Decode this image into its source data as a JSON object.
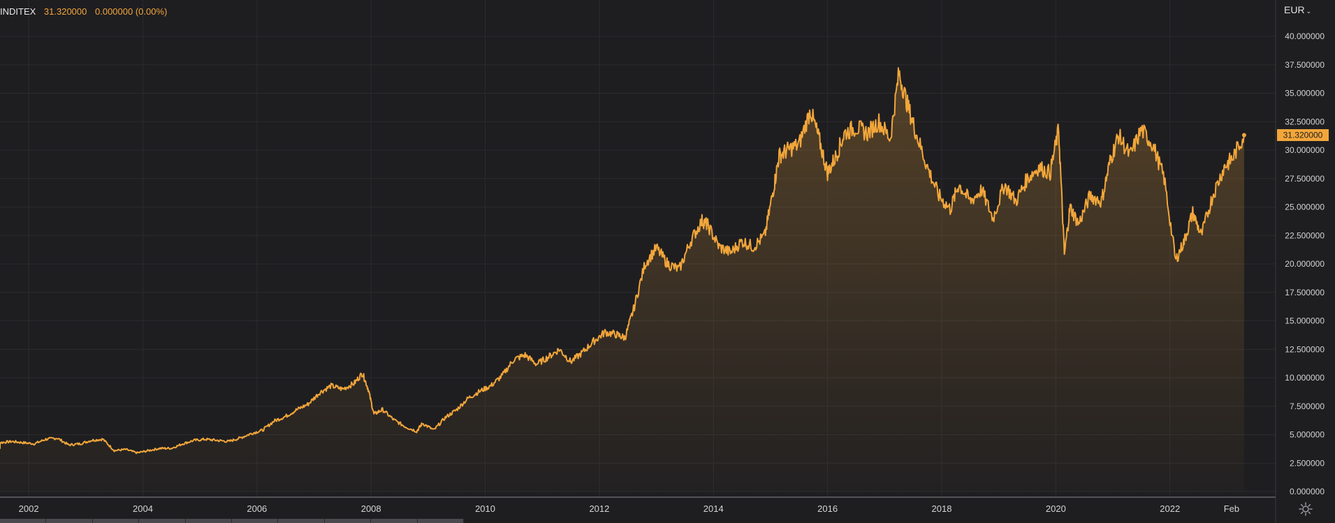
{
  "header": {
    "symbol": "INDITEX",
    "last_price": "31.320000",
    "change": "0.000000 (0.00%)"
  },
  "currency": {
    "label": "EUR",
    "caret": "⌄"
  },
  "colors": {
    "background": "#1e1e21",
    "line": "#f2a63a",
    "grid": "#2b2b2f",
    "axis_text": "#d4d4d4"
  },
  "chart_data": {
    "type": "area",
    "title": "",
    "xlabel": "",
    "ylabel": "",
    "ylim": [
      0,
      40
    ],
    "xlim": [
      2001.3,
      2024.0
    ],
    "y_ticks": [
      "0.000000",
      "2.500000",
      "5.000000",
      "7.500000",
      "10.000000",
      "12.500000",
      "15.000000",
      "17.500000",
      "20.000000",
      "22.500000",
      "25.000000",
      "27.500000",
      "30.000000",
      "32.500000",
      "35.000000",
      "37.500000",
      "40.000000"
    ],
    "x_ticks": [
      {
        "x": 2002,
        "label": "2002"
      },
      {
        "x": 2004,
        "label": "2004"
      },
      {
        "x": 2006,
        "label": "2006"
      },
      {
        "x": 2008,
        "label": "2008"
      },
      {
        "x": 2010,
        "label": "2010"
      },
      {
        "x": 2012,
        "label": "2012"
      },
      {
        "x": 2014,
        "label": "2014"
      },
      {
        "x": 2016,
        "label": "2016"
      },
      {
        "x": 2018,
        "label": "2018"
      },
      {
        "x": 2020,
        "label": "2020"
      },
      {
        "x": 2022,
        "label": "2022"
      },
      {
        "x": 2023.08,
        "label": "Feb"
      }
    ],
    "last_value_label": "31.320000",
    "last_value": 31.32,
    "series": [
      {
        "x": [
          2001.3,
          2001.5,
          2001.7,
          2001.9,
          2002.1,
          2002.3,
          2002.5,
          2002.7,
          2002.9,
          2003.1,
          2003.3,
          2003.5,
          2003.7,
          2003.9,
          2004.1,
          2004.3,
          2004.5,
          2004.7,
          2004.9,
          2005.1,
          2005.3,
          2005.5,
          2005.7,
          2005.9,
          2006.1,
          2006.3,
          2006.5,
          2006.7,
          2006.9,
          2007.1,
          2007.3,
          2007.5,
          2007.7,
          2007.85,
          2007.95,
          2008.05,
          2008.2,
          2008.4,
          2008.6,
          2008.8,
          2008.9,
          2009.1,
          2009.3,
          2009.5,
          2009.7,
          2009.9,
          2010.1,
          2010.3,
          2010.5,
          2010.7,
          2010.9,
          2011.1,
          2011.3,
          2011.5,
          2011.7,
          2011.9,
          2012.1,
          2012.3,
          2012.45,
          2012.6,
          2012.8,
          2013.0,
          2013.2,
          2013.4,
          2013.6,
          2013.8,
          2013.9,
          2014.1,
          2014.3,
          2014.5,
          2014.7,
          2014.9,
          2015.05,
          2015.15,
          2015.3,
          2015.5,
          2015.7,
          2015.85,
          2016.0,
          2016.15,
          2016.3,
          2016.5,
          2016.7,
          2016.9,
          2017.1,
          2017.25,
          2017.4,
          2017.55,
          2017.75,
          2017.95,
          2018.15,
          2018.3,
          2018.5,
          2018.7,
          2018.9,
          2019.1,
          2019.3,
          2019.5,
          2019.7,
          2019.9,
          2020.05,
          2020.15,
          2020.25,
          2020.4,
          2020.6,
          2020.8,
          2020.95,
          2021.1,
          2021.3,
          2021.5,
          2021.7,
          2021.9,
          2022.1,
          2022.25,
          2022.4,
          2022.55,
          2022.75,
          2022.95,
          2023.1,
          2023.3
        ],
        "y": [
          3.8,
          4.3,
          4.4,
          4.3,
          4.2,
          4.6,
          4.7,
          4.1,
          4.2,
          4.5,
          4.6,
          3.6,
          3.7,
          3.4,
          3.6,
          3.8,
          3.8,
          4.2,
          4.5,
          4.6,
          4.5,
          4.4,
          4.7,
          5.1,
          5.4,
          6.2,
          6.6,
          7.2,
          7.7,
          8.7,
          9.3,
          9.0,
          9.5,
          10.4,
          9.0,
          6.8,
          7.2,
          6.3,
          5.7,
          5.3,
          6.0,
          5.4,
          6.5,
          7.2,
          8.2,
          8.8,
          9.3,
          10.2,
          11.6,
          12.0,
          11.2,
          11.8,
          12.5,
          11.4,
          12.2,
          13.2,
          14.0,
          13.8,
          13.5,
          16.0,
          20.0,
          21.4,
          20.0,
          19.5,
          22.0,
          23.8,
          23.4,
          21.5,
          21.0,
          22.0,
          21.5,
          22.5,
          26.5,
          29.5,
          30.0,
          30.5,
          33.5,
          31.0,
          28.0,
          29.5,
          31.5,
          32.0,
          31.5,
          32.5,
          31.0,
          36.8,
          34.0,
          31.5,
          28.5,
          26.0,
          24.8,
          27.0,
          25.5,
          26.5,
          24.0,
          27.0,
          25.5,
          27.5,
          28.5,
          28.0,
          31.8,
          20.8,
          25.0,
          23.5,
          26.0,
          25.5,
          29.0,
          31.3,
          29.5,
          31.8,
          30.5,
          27.5,
          20.3,
          22.0,
          24.5,
          22.5,
          26.0,
          28.5,
          29.3,
          31.32
        ]
      }
    ]
  }
}
